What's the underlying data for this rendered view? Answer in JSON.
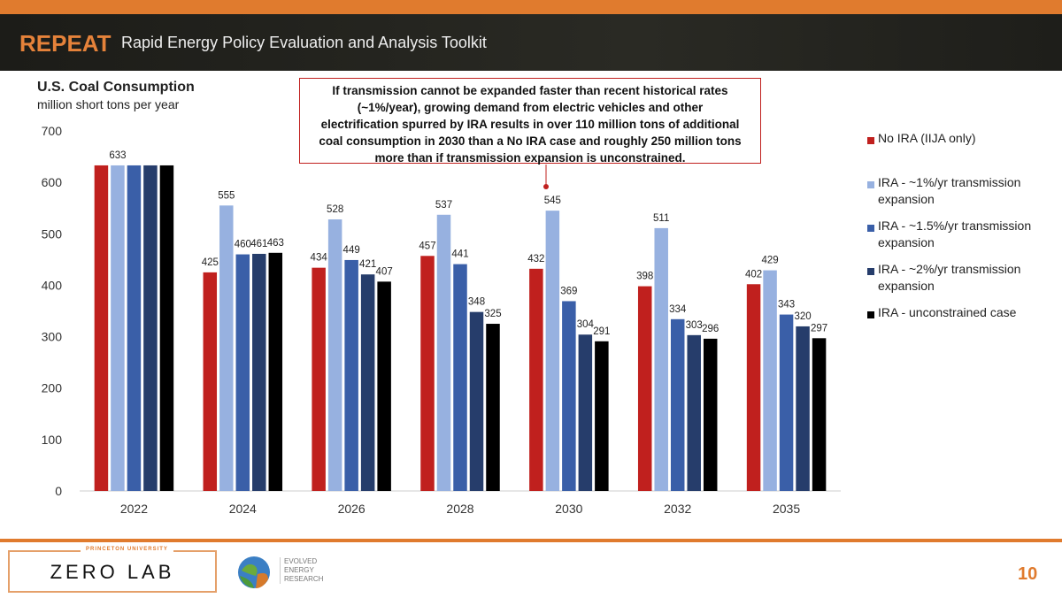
{
  "header": {
    "brand": "REPEAT",
    "subtitle": "Rapid Energy Policy Evaluation and Analysis Toolkit"
  },
  "annotation": {
    "line1": "If transmission cannot be expanded faster than recent historical rates",
    "line2": "(~1%/year), growing demand from electric vehicles and other",
    "line3": "electrification spurred by IRA results in over 110 million tons of additional",
    "line4": "coal consumption in 2030 than a No IRA case and roughly 250 million tons",
    "line5": "more than if transmission expansion is unconstrained."
  },
  "footer": {
    "university": "PRINCETON UNIVERSITY",
    "lab": "ZERO LAB",
    "partner_line1": "EVOLVED",
    "partner_line2": "ENERGY",
    "partner_line3": "RESEARCH",
    "page_number": "10"
  },
  "chart_data": {
    "type": "bar",
    "title": "U.S. Coal Consumption",
    "ylabel": "million short tons per year",
    "ylim": [
      0,
      700
    ],
    "yticks": [
      0,
      100,
      200,
      300,
      400,
      500,
      600,
      700
    ],
    "categories": [
      "2022",
      "2024",
      "2026",
      "2028",
      "2030",
      "2032",
      "2035"
    ],
    "legend_position": "right",
    "series": [
      {
        "name": "No IRA (IIJA only)",
        "color": "#C0201E",
        "values": [
          633,
          425,
          434,
          457,
          432,
          398,
          402
        ]
      },
      {
        "name": "IRA - ~1%/yr transmission expansion",
        "color": "#97B1E0",
        "values": [
          633,
          555,
          528,
          537,
          545,
          511,
          429
        ]
      },
      {
        "name": "IRA - ~1.5%/yr transmission expansion",
        "color": "#3A5FA8",
        "values": [
          633,
          460,
          449,
          441,
          369,
          334,
          343
        ]
      },
      {
        "name": "IRA - ~2%/yr transmission expansion",
        "color": "#263D6B",
        "values": [
          633,
          461,
          421,
          348,
          304,
          303,
          320
        ]
      },
      {
        "name": "IRA - unconstrained case",
        "color": "#000000",
        "values": [
          633,
          463,
          407,
          325,
          291,
          296,
          297
        ]
      }
    ],
    "data_labels_shown_2022": "633"
  }
}
